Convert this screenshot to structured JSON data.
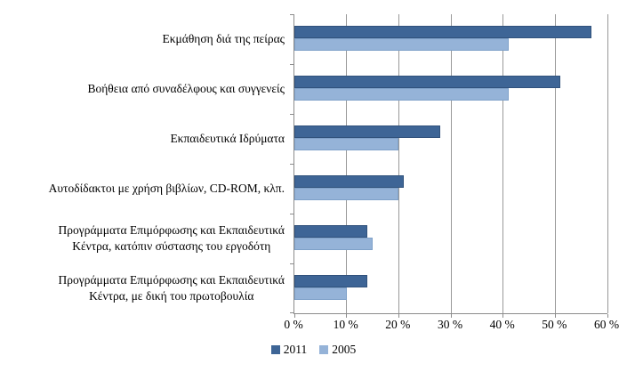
{
  "chart_data": {
    "type": "bar",
    "orientation": "horizontal",
    "title": "",
    "categories": [
      "Εκμάθηση διά της πείρας",
      "Βοήθεια από συναδέλφους και συγγενείς",
      "Εκπαιδευτικά Ιδρύματα",
      "Αυτοδίδακτοι με χρήση βιβλίων, CD-ROM, κλπ.",
      "Προγράμματα Επιμόρφωσης και Εκπαιδευτικά\nΚέντρα, κατόπιν σύστασης του εργοδότη",
      "Προγράμματα Επιμόρφωσης και Εκπαιδευτικά\nΚέντρα, με δική του πρωτοβουλία"
    ],
    "series": [
      {
        "name": "2011",
        "color": "#3e6596",
        "border_color": "#31527c",
        "values": [
          57,
          51,
          28,
          21,
          14,
          14
        ]
      },
      {
        "name": "2005",
        "color": "#95b3d8",
        "border_color": "#7fa1c9",
        "values": [
          41,
          41,
          20,
          20,
          15,
          10
        ]
      }
    ],
    "unit": "%",
    "xlim": [
      0,
      60
    ],
    "x_tick_values": [
      0,
      10,
      20,
      30,
      40,
      50,
      60
    ],
    "x_tick_labels": [
      "0 %",
      "10 %",
      "20 %",
      "30 %",
      "40 %",
      "50 %",
      "60 %"
    ],
    "grid": true,
    "legend_position": "bottom",
    "colors": {
      "gridline": "#999999",
      "axis": "#8c8c8c",
      "background": "#ffffff",
      "text": "#000000"
    }
  }
}
